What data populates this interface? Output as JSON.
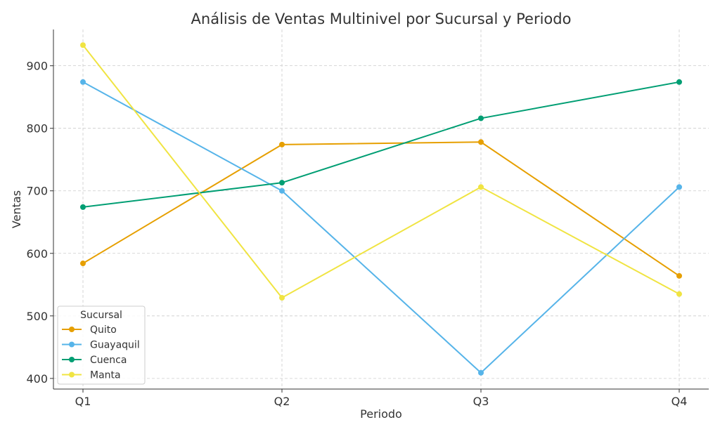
{
  "chart_data": {
    "type": "line",
    "title": "Análisis de Ventas Multinivel por Sucursal y Periodo",
    "xlabel": "Periodo",
    "ylabel": "Ventas",
    "categories": [
      "Q1",
      "Q2",
      "Q3",
      "Q4"
    ],
    "yticks": [
      400,
      500,
      600,
      700,
      800,
      900
    ],
    "ylim": [
      383,
      958
    ],
    "grid": true,
    "legend": {
      "title": "Sucursal",
      "placement": "lower-left"
    },
    "series": [
      {
        "name": "Quito",
        "color": "#E69F00",
        "values": [
          584,
          774,
          778,
          564
        ]
      },
      {
        "name": "Guayaquil",
        "color": "#56B4E9",
        "values": [
          874,
          700,
          409,
          706
        ]
      },
      {
        "name": "Cuenca",
        "color": "#009E73",
        "values": [
          674,
          713,
          816,
          874
        ]
      },
      {
        "name": "Manta",
        "color": "#F0E442",
        "values": [
          933,
          529,
          706,
          535
        ]
      }
    ]
  }
}
